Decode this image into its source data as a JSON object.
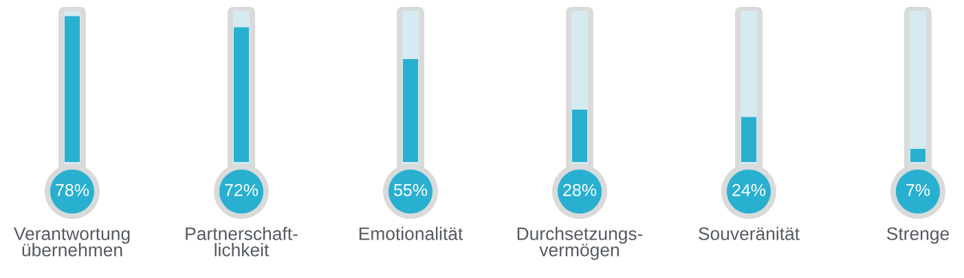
{
  "chart_data": {
    "type": "bar",
    "categories": [
      "Verantwortung\nübernehmen",
      "Partnerschaft-\nlichkeit",
      "Emotionalität",
      "Durchsetzungs-\nvermögen",
      "Souveränität",
      "Strenge"
    ],
    "values": [
      78,
      72,
      55,
      28,
      24,
      7
    ],
    "value_labels": [
      "78%",
      "72%",
      "55%",
      "28%",
      "24%",
      "7%"
    ],
    "color": "#29b0d0",
    "tick_labels": "x"
  }
}
